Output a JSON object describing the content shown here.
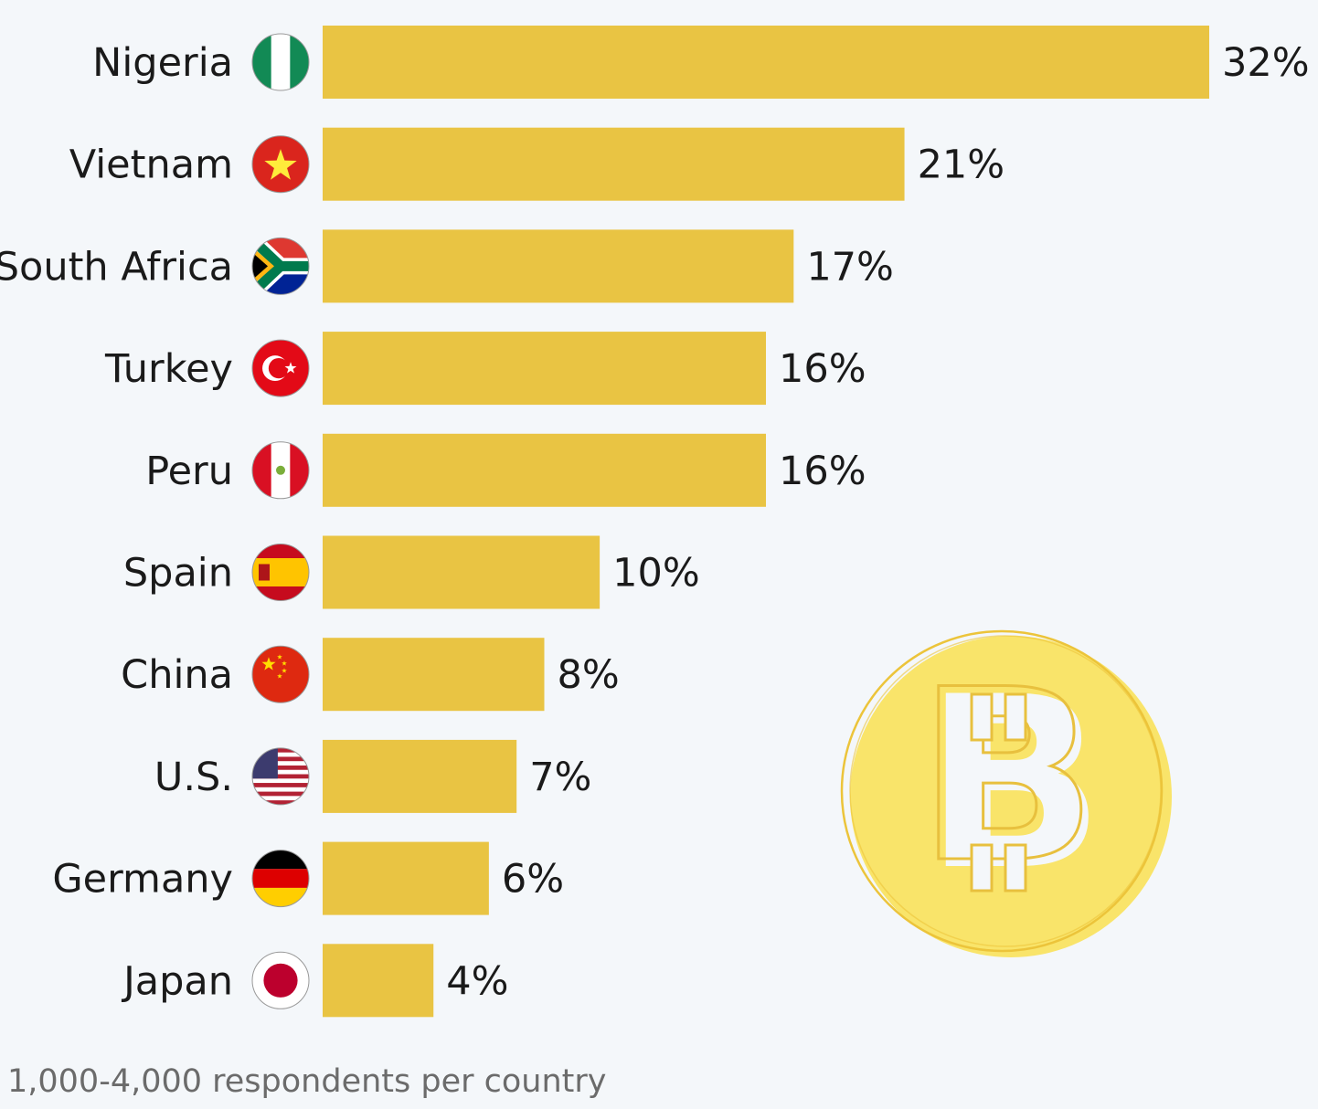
{
  "chart_data": {
    "type": "bar",
    "orientation": "horizontal",
    "categories": [
      "Nigeria",
      "Vietnam",
      "South Africa",
      "Turkey",
      "Peru",
      "Spain",
      "China",
      "U.S.",
      "Germany",
      "Japan"
    ],
    "values": [
      32,
      21,
      17,
      16,
      16,
      10,
      8,
      7,
      6,
      4
    ],
    "value_labels": [
      "32%",
      "21%",
      "17%",
      "16%",
      "16%",
      "10%",
      "8%",
      "7%",
      "6%",
      "4%"
    ],
    "flags": [
      "nigeria-flag-icon",
      "vietnam-flag-icon",
      "south-africa-flag-icon",
      "turkey-flag-icon",
      "peru-flag-icon",
      "spain-flag-icon",
      "china-flag-icon",
      "us-flag-icon",
      "germany-flag-icon",
      "japan-flag-icon"
    ],
    "unit": "%",
    "xlim": [
      0,
      32
    ],
    "grid": false,
    "bar_color": "#e9c443",
    "decoration": "bitcoin-coin-icon"
  },
  "footer": "1,000-4,000 respondents per country"
}
